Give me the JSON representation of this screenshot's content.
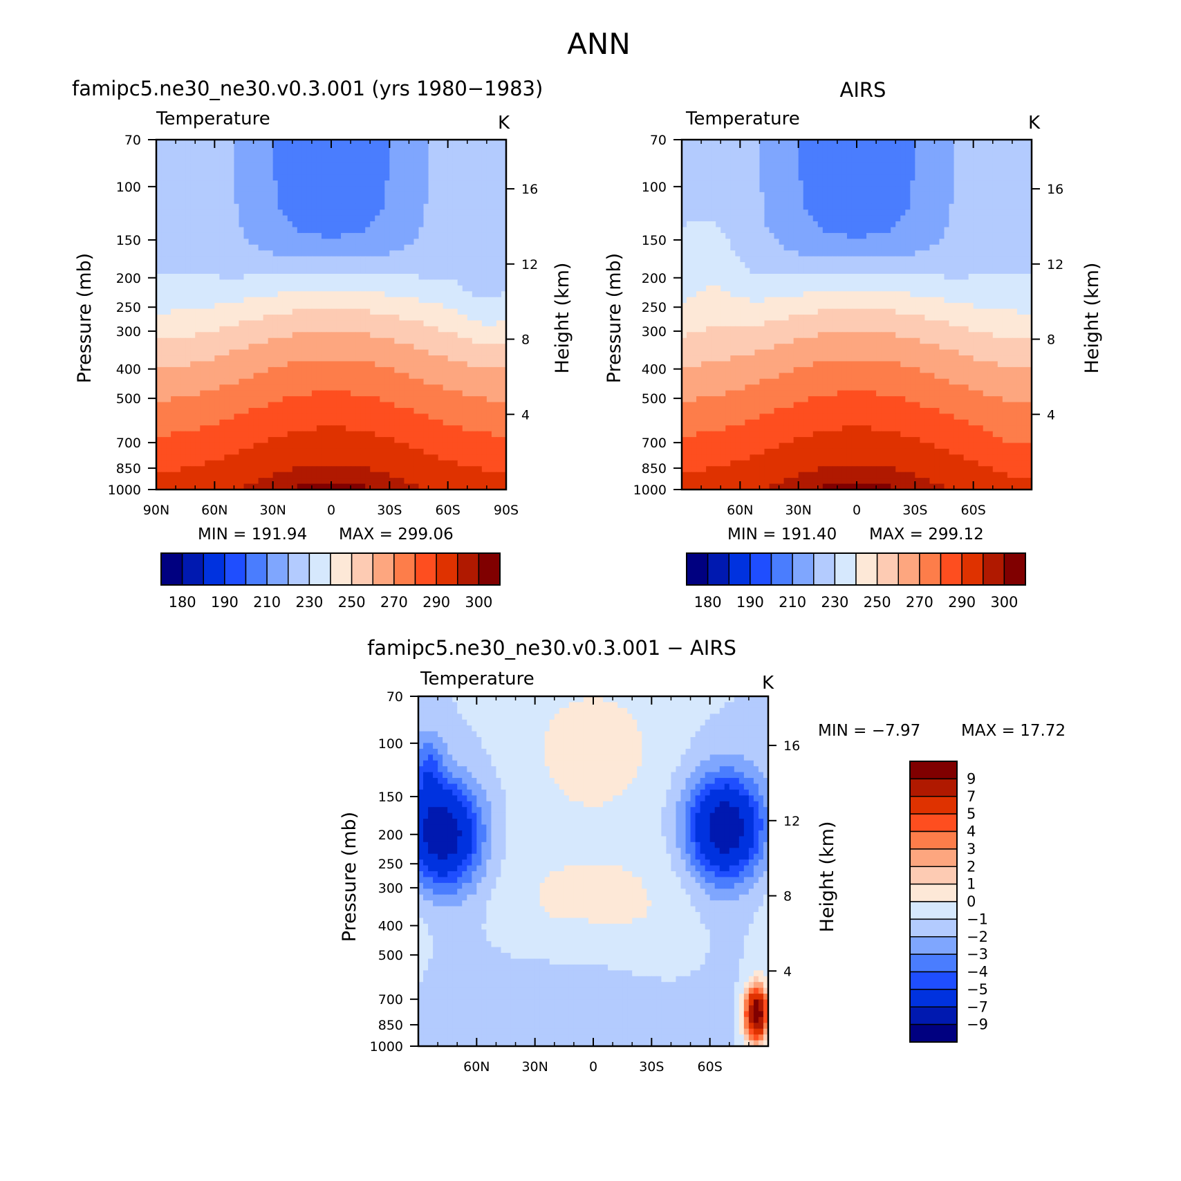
{
  "page_title": "ANN",
  "palettes": {
    "abs": [
      "#000080",
      "#0019b0",
      "#0032df",
      "#1f4efe",
      "#4a7dfe",
      "#7fa6fe",
      "#b3cbfe",
      "#d6e8fd",
      "#fde8d7",
      "#fdcbb3",
      "#fda67f",
      "#fd7d4a",
      "#fe4e1f",
      "#df3200",
      "#b01900",
      "#800000"
    ],
    "diff": [
      "#000080",
      "#0019b0",
      "#0032df",
      "#1f4efe",
      "#4a7dfe",
      "#7fa6fe",
      "#b3cbfe",
      "#d6e8fd",
      "#fde8d7",
      "#fdcbb3",
      "#fda67f",
      "#fd7d4a",
      "#fe4e1f",
      "#df3200",
      "#b01900",
      "#800000"
    ]
  },
  "chart_data": [
    {
      "type": "heatmap",
      "title": "famipc5.ne30_ne30.v0.3.001 (yrs 1980−1983)",
      "subtitle": "Temperature",
      "units": "K",
      "ylabel": "Pressure (mb)",
      "ylabel_right": "Height (km)",
      "x_ticks": [
        "90N",
        "60N",
        "30N",
        "0",
        "30S",
        "60S",
        "90S"
      ],
      "x_values": [
        90,
        60,
        30,
        0,
        -30,
        -60,
        -90
      ],
      "xlim": [
        90,
        -90
      ],
      "y_ticks": [
        70,
        100,
        150,
        200,
        250,
        300,
        400,
        500,
        700,
        850,
        1000
      ],
      "ylim": [
        70,
        1000
      ],
      "y_scale": "log",
      "height_ticks": [
        16,
        12,
        8,
        4
      ],
      "min_label": "MIN = 191.94",
      "max_label": "MAX = 299.06",
      "min": 191.94,
      "max": 299.06,
      "mode": "model",
      "colorbar": {
        "orientation": "horizontal",
        "levels": [
          175,
          180,
          185,
          190,
          200,
          210,
          220,
          230,
          240,
          250,
          260,
          270,
          280,
          290,
          295,
          300
        ],
        "labels": [
          "180",
          "190",
          "210",
          "230",
          "250",
          "270",
          "290",
          "300"
        ]
      }
    },
    {
      "type": "heatmap",
      "title": "AIRS",
      "subtitle": "Temperature",
      "units": "K",
      "ylabel": "Pressure (mb)",
      "ylabel_right": "Height (km)",
      "x_ticks": [
        "60N",
        "30N",
        "0",
        "30S",
        "60S"
      ],
      "x_values": [
        60,
        30,
        0,
        -30,
        -60
      ],
      "xlim": [
        90,
        -90
      ],
      "y_ticks": [
        70,
        100,
        150,
        200,
        250,
        300,
        400,
        500,
        700,
        850,
        1000
      ],
      "ylim": [
        70,
        1000
      ],
      "y_scale": "log",
      "height_ticks": [
        16,
        12,
        8,
        4
      ],
      "min_label": "MIN = 191.40",
      "max_label": "MAX = 299.12",
      "min": 191.4,
      "max": 299.12,
      "mode": "obs",
      "colorbar": {
        "orientation": "horizontal",
        "levels": [
          175,
          180,
          185,
          190,
          200,
          210,
          220,
          230,
          240,
          250,
          260,
          270,
          280,
          290,
          295,
          300
        ],
        "labels": [
          "180",
          "190",
          "210",
          "230",
          "250",
          "270",
          "290",
          "300"
        ]
      }
    },
    {
      "type": "heatmap",
      "title": "famipc5.ne30_ne30.v0.3.001 − AIRS",
      "subtitle": "Temperature",
      "units": "K",
      "ylabel": "Pressure (mb)",
      "ylabel_right": "Height (km)",
      "x_ticks": [
        "60N",
        "30N",
        "0",
        "30S",
        "60S"
      ],
      "x_values": [
        60,
        30,
        0,
        -30,
        -60
      ],
      "xlim": [
        90,
        -90
      ],
      "y_ticks": [
        70,
        100,
        150,
        200,
        250,
        300,
        400,
        500,
        700,
        850,
        1000
      ],
      "ylim": [
        70,
        1000
      ],
      "y_scale": "log",
      "height_ticks": [
        16,
        12,
        8,
        4
      ],
      "min_label": "MIN =   −7.97",
      "max_label": "MAX =   17.72",
      "min": -7.97,
      "max": 17.72,
      "mode": "diff",
      "colorbar": {
        "orientation": "vertical",
        "levels": [
          -9,
          -7,
          -5,
          -4,
          -3,
          -2,
          -1,
          0,
          1,
          2,
          3,
          4,
          5,
          7,
          9
        ],
        "labels": [
          "9",
          "7",
          "5",
          "4",
          "3",
          "2",
          "1",
          "0",
          "−1",
          "−2",
          "−3",
          "−4",
          "−5",
          "−7",
          "−9"
        ]
      }
    }
  ]
}
